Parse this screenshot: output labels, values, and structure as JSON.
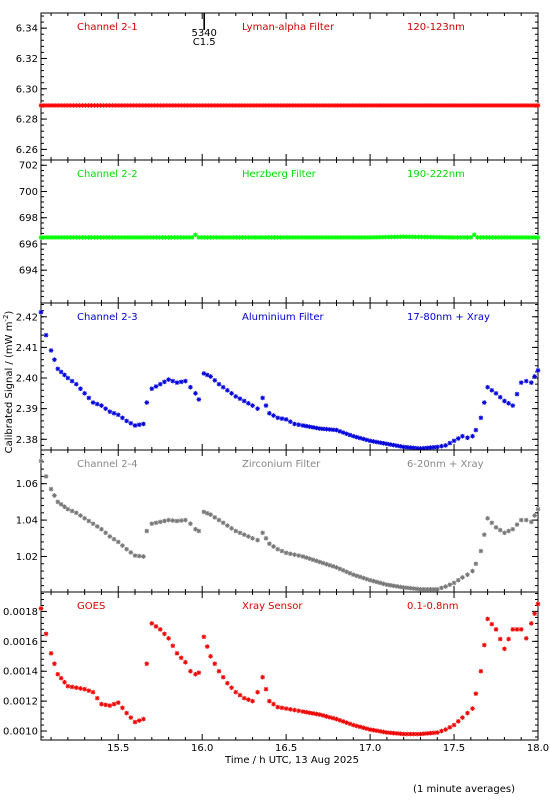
{
  "chart_data": {
    "type": "scatter",
    "marker": "asterisk",
    "x": {
      "label": "Time / h UTC, 13 Aug 2025",
      "range": [
        15.04,
        18.0
      ],
      "ticks": [
        15.5,
        16.0,
        16.5,
        17.0,
        17.5,
        18.0
      ],
      "tick_labels": [
        "15.5",
        "16.0",
        "16.5",
        "17.0",
        "17.5",
        "18.0"
      ]
    },
    "ylabel": "Calibrated Signal / (mW m",
    "ylabel_exponent": "-2",
    "ylabel_close": ")",
    "footnote": "(1 minute averages)",
    "event_marker": {
      "x": 16.0,
      "label_top": "5340",
      "label_bottom": "C1.5"
    },
    "panels": [
      {
        "id": "channel-2-1",
        "channel": "Channel 2-1",
        "filter": "Lyman-alpha Filter",
        "band": "120-123nm",
        "color": "#ff0000",
        "label_color": "#d00000",
        "ylim": [
          6.253,
          6.35
        ],
        "yticks": [
          6.26,
          6.28,
          6.3,
          6.32,
          6.34
        ],
        "ytick_labels": [
          "6.26",
          "6.28",
          "6.30",
          "6.32",
          "6.34"
        ],
        "series": [
          {
            "x": [
              15.04,
              15.5,
              16.0,
              16.5,
              17.0,
              17.5,
              18.0
            ],
            "y": [
              6.289,
              6.289,
              6.289,
              6.289,
              6.289,
              6.289,
              6.289
            ]
          }
        ]
      },
      {
        "id": "channel-2-2",
        "channel": "Channel 2-2",
        "filter": "Herzberg Filter",
        "band": "190-222nm",
        "color": "#00ff00",
        "label_color": "#00dd00",
        "ylim": [
          691.5,
          702.4
        ],
        "yticks": [
          694,
          696,
          698,
          700,
          702
        ],
        "ytick_labels": [
          "694",
          "696",
          "698",
          "700",
          "702"
        ],
        "series": [
          {
            "x": [
              15.04,
              15.5,
              15.94,
              15.96,
              15.98,
              16.5,
              17.0,
              17.2,
              17.5,
              17.6,
              17.62,
              17.64,
              18.0
            ],
            "y": [
              696.5,
              696.5,
              696.5,
              696.7,
              696.5,
              696.5,
              696.5,
              696.55,
              696.5,
              696.5,
              696.7,
              696.5,
              696.5
            ]
          }
        ]
      },
      {
        "id": "channel-2-3",
        "channel": "Channel 2-3",
        "filter": "Aluminium Filter",
        "band": "17-80nm + Xray",
        "color": "#0000dd",
        "label_color": "#0000cc",
        "ylim": [
          2.3765,
          2.4245
        ],
        "yticks": [
          2.38,
          2.39,
          2.4,
          2.41,
          2.42
        ],
        "ytick_labels": [
          "2.38",
          "2.39",
          "2.40",
          "2.41",
          "2.42"
        ],
        "series": [
          {
            "x": [
              15.04,
              15.07,
              15.1,
              15.14,
              15.2,
              15.25,
              15.3,
              15.35,
              15.4,
              15.45,
              15.5,
              15.55,
              15.6,
              15.65
            ],
            "y": [
              2.4215,
              2.414,
              2.409,
              2.403,
              2.4,
              2.398,
              2.395,
              2.392,
              2.391,
              2.389,
              2.388,
              2.386,
              2.3845,
              2.385
            ]
          },
          {
            "x": [
              15.67,
              15.7,
              15.75,
              15.8,
              15.85,
              15.9,
              15.93,
              15.96,
              15.98
            ],
            "y": [
              2.392,
              2.3965,
              2.398,
              2.3995,
              2.3985,
              2.399,
              2.397,
              2.395,
              2.393
            ]
          },
          {
            "x": [
              16.01,
              16.05,
              16.1,
              16.15,
              16.2,
              16.25,
              16.3,
              16.33,
              16.36,
              16.4,
              16.45,
              16.5,
              16.55,
              16.6,
              16.7,
              16.8,
              16.9,
              17.0,
              17.1,
              17.2,
              17.3,
              17.4,
              17.45,
              17.5,
              17.55,
              17.58,
              17.61,
              17.63,
              17.66,
              17.7,
              17.75,
              17.8,
              17.85,
              17.9,
              17.93,
              17.96,
              18.0
            ],
            "y": [
              2.4015,
              2.4005,
              2.398,
              2.396,
              2.394,
              2.3925,
              2.391,
              2.39,
              2.3935,
              2.3885,
              2.387,
              2.3865,
              2.385,
              2.3845,
              2.3835,
              2.383,
              2.381,
              2.3795,
              2.3785,
              2.3775,
              2.377,
              2.3775,
              2.378,
              2.3795,
              2.381,
              2.3805,
              2.381,
              2.383,
              2.387,
              2.397,
              2.395,
              2.3925,
              2.391,
              2.3985,
              2.399,
              2.3985,
              2.4025
            ]
          }
        ]
      },
      {
        "id": "channel-2-4",
        "channel": "Channel 2-4",
        "filter": "Zirconium Filter",
        "band": "6-20nm + Xray",
        "color": "#777777",
        "label_color": "#888888",
        "ylim": [
          1.0005,
          1.0785
        ],
        "yticks": [
          1.02,
          1.04,
          1.06
        ],
        "ytick_labels": [
          "1.02",
          "1.04",
          "1.06"
        ],
        "series": [
          {
            "x": [
              15.04,
              15.07,
              15.1,
              15.14,
              15.2,
              15.25,
              15.3,
              15.35,
              15.4,
              15.45,
              15.5,
              15.55,
              15.6,
              15.65
            ],
            "y": [
              1.0725,
              1.064,
              1.057,
              1.05,
              1.046,
              1.044,
              1.041,
              1.038,
              1.035,
              1.031,
              1.028,
              1.024,
              1.0205,
              1.02
            ]
          },
          {
            "x": [
              15.67,
              15.7,
              15.75,
              15.8,
              15.85,
              15.9,
              15.93,
              15.96,
              15.98
            ],
            "y": [
              1.034,
              1.038,
              1.039,
              1.04,
              1.0395,
              1.04,
              1.038,
              1.035,
              1.034
            ]
          },
          {
            "x": [
              16.01,
              16.05,
              16.1,
              16.15,
              16.2,
              16.25,
              16.3,
              16.33,
              16.36,
              16.4,
              16.45,
              16.5,
              16.55,
              16.6,
              16.7,
              16.8,
              16.9,
              17.0,
              17.1,
              17.2,
              17.3,
              17.4,
              17.45,
              17.5,
              17.55,
              17.58,
              17.61,
              17.63,
              17.66,
              17.7,
              17.75,
              17.8,
              17.85,
              17.9,
              17.93,
              17.96,
              18.0
            ],
            "y": [
              1.0445,
              1.043,
              1.04,
              1.037,
              1.034,
              1.032,
              1.03,
              1.029,
              1.033,
              1.027,
              1.024,
              1.022,
              1.021,
              1.02,
              1.017,
              1.014,
              1.01,
              1.007,
              1.0045,
              1.003,
              1.002,
              1.002,
              1.0035,
              1.0055,
              1.0085,
              1.01,
              1.012,
              1.016,
              1.023,
              1.041,
              1.036,
              1.033,
              1.035,
              1.04,
              1.04,
              1.039,
              1.046
            ]
          }
        ]
      },
      {
        "id": "goes",
        "channel": "GOES",
        "filter": "Xray Sensor",
        "band": "0.1-0.8nm",
        "color": "#ee0000",
        "label_color": "#dd0000",
        "ylim": [
          0.00094,
          0.00193
        ],
        "yticks": [
          0.001,
          0.0012,
          0.0014,
          0.0016,
          0.0018
        ],
        "ytick_labels": [
          "0.0010",
          "0.0012",
          "0.0014",
          "0.0016",
          "0.0018"
        ],
        "series": [
          {
            "x": [
              15.04,
              15.07,
              15.1,
              15.14,
              15.2,
              15.25,
              15.3,
              15.35,
              15.4,
              15.45,
              15.5,
              15.55,
              15.6,
              15.65
            ],
            "y": [
              0.00182,
              0.00165,
              0.00152,
              0.00138,
              0.0013,
              0.00129,
              0.00128,
              0.00126,
              0.00118,
              0.00117,
              0.00119,
              0.00112,
              0.00106,
              0.00108
            ]
          },
          {
            "x": [
              15.67,
              15.7,
              15.75,
              15.8,
              15.85,
              15.9,
              15.93,
              15.96,
              15.98
            ],
            "y": [
              0.00145,
              0.00172,
              0.00168,
              0.00162,
              0.00152,
              0.00146,
              0.0014,
              0.00138,
              0.00139
            ]
          },
          {
            "x": [
              16.01,
              16.05,
              16.1,
              16.15,
              16.2,
              16.25,
              16.3,
              16.33,
              16.36,
              16.4,
              16.45,
              16.5,
              16.55,
              16.6,
              16.7,
              16.8,
              16.9,
              17.0,
              17.1,
              17.2,
              17.3,
              17.4,
              17.45,
              17.5,
              17.55,
              17.58,
              17.61,
              17.63,
              17.66,
              17.7,
              17.75,
              17.8,
              17.85,
              17.9,
              17.93,
              17.96,
              18.0
            ],
            "y": [
              0.00163,
              0.0015,
              0.0014,
              0.00132,
              0.00126,
              0.00122,
              0.0012,
              0.00126,
              0.00136,
              0.0012,
              0.00116,
              0.00115,
              0.00114,
              0.00113,
              0.00111,
              0.00108,
              0.00104,
              0.00101,
              0.00099,
              0.00098,
              0.00098,
              0.00099,
              0.00101,
              0.00104,
              0.00109,
              0.00112,
              0.00115,
              0.00125,
              0.0014,
              0.00175,
              0.00168,
              0.00155,
              0.00168,
              0.00168,
              0.00162,
              0.00172,
              0.00185
            ]
          }
        ]
      }
    ]
  }
}
